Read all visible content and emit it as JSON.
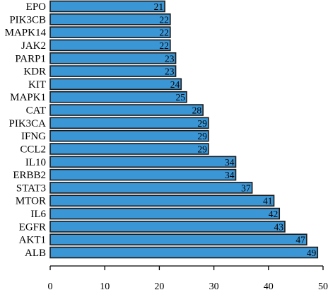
{
  "chart_data": {
    "type": "bar",
    "orientation": "horizontal",
    "title": "",
    "xlabel": "",
    "ylabel": "",
    "categories": [
      "EPO",
      "PIK3CB",
      "MAPK14",
      "JAK2",
      "PARP1",
      "KDR",
      "KIT",
      "MAPK1",
      "CAT",
      "PIK3CA",
      "IFNG",
      "CCL2",
      "IL10",
      "ERBB2",
      "STAT3",
      "MTOR",
      "IL6",
      "EGFR",
      "AKT1",
      "ALB"
    ],
    "values": [
      21,
      22,
      22,
      22,
      23,
      23,
      24,
      25,
      28,
      29,
      29,
      29,
      34,
      34,
      37,
      41,
      42,
      43,
      47,
      49
    ],
    "xlim": [
      0,
      50
    ],
    "xticks": [
      0,
      10,
      20,
      30,
      40,
      50
    ],
    "grid": false,
    "legend": "none",
    "bar_color": "#3b96d6",
    "bar_edge_color": "#1a1a1a",
    "axis_color": "#000000"
  }
}
